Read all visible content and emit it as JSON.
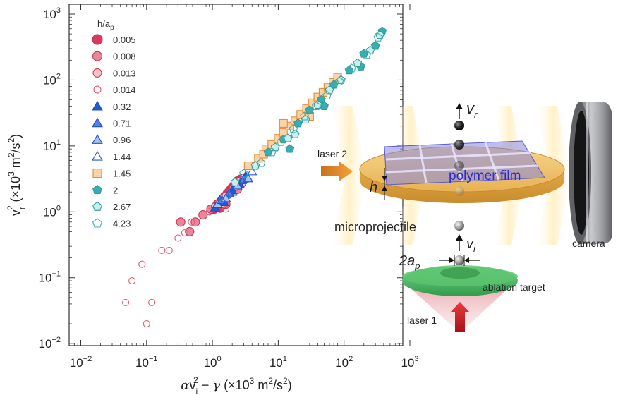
{
  "chart_data": {
    "type": "scatter",
    "scale": "log-log",
    "x_label": "αv_i^2 − γ (×10^3 m^2/s^2)",
    "y_label": "v_r^2 (×10^3 m^2/s^2)",
    "xlim": [
      0.01,
      1000
    ],
    "ylim": [
      0.01,
      1000
    ],
    "x_tick_labels": [
      "10^−2",
      "10^−1",
      "10^0",
      "10^1",
      "10^2",
      "10^3"
    ],
    "y_tick_labels": [
      "10^−2",
      "10^−1",
      "10^0",
      "10^1",
      "10^2",
      "10^3"
    ],
    "legend_title": "h/a_p",
    "legend_position": "top-left",
    "grid": false,
    "series": [
      {
        "name": "0.005",
        "marker": "circle-filled",
        "color": "#d9395f",
        "points": [
          [
            1.05,
            1.1
          ],
          [
            1.2,
            1.3
          ],
          [
            1.4,
            1.5
          ],
          [
            1.55,
            1.7
          ],
          [
            1.7,
            1.9
          ],
          [
            1.85,
            2.1
          ],
          [
            2.0,
            2.3
          ],
          [
            2.2,
            2.6
          ],
          [
            2.4,
            2.9
          ],
          [
            2.7,
            3.1
          ],
          [
            1.3,
            1.15
          ]
        ]
      },
      {
        "name": "0.008",
        "marker": "circle-filled",
        "color": "#e8879b",
        "points": [
          [
            0.33,
            0.7
          ],
          [
            0.45,
            0.5
          ],
          [
            0.55,
            0.7
          ],
          [
            0.72,
            0.9
          ],
          [
            0.95,
            1.1
          ],
          [
            1.25,
            1.35
          ],
          [
            1.45,
            1.6
          ],
          [
            1.75,
            1.85
          ],
          [
            2.1,
            2.3
          ],
          [
            2.4,
            2.2
          ],
          [
            1.6,
            1.3
          ]
        ]
      },
      {
        "name": "0.013",
        "marker": "circle-filled",
        "color": "#f6c3cc",
        "points": [
          [
            1.1,
            1.2
          ],
          [
            1.35,
            1.45
          ],
          [
            1.6,
            1.75
          ],
          [
            1.9,
            2.0
          ],
          [
            2.25,
            2.4
          ],
          [
            2.6,
            2.9
          ],
          [
            3.0,
            3.3
          ],
          [
            2.8,
            2.7
          ],
          [
            1.5,
            1.3
          ]
        ]
      },
      {
        "name": "0.014",
        "marker": "circle-open",
        "color": "#e35a6d",
        "points": [
          [
            0.048,
            0.042
          ],
          [
            0.06,
            0.09
          ],
          [
            0.085,
            0.16
          ],
          [
            0.1,
            0.02
          ],
          [
            0.12,
            0.042
          ],
          [
            0.17,
            0.26
          ],
          [
            0.22,
            0.26
          ],
          [
            0.3,
            0.4
          ],
          [
            0.38,
            0.48
          ],
          [
            0.48,
            0.7
          ],
          [
            0.9,
            1.0
          ],
          [
            1.6,
            1.1
          ]
        ]
      },
      {
        "name": "0.32",
        "marker": "triangle-filled",
        "color": "#1f5bd6",
        "points": [
          [
            1.1,
            1.15
          ],
          [
            1.5,
            1.4
          ],
          [
            2.0,
            2.1
          ],
          [
            2.6,
            2.6
          ],
          [
            3.2,
            3.5
          ]
        ]
      },
      {
        "name": "0.71",
        "marker": "triangle-filled",
        "color": "#4f84e0",
        "points": [
          [
            1.3,
            1.5
          ],
          [
            1.8,
            1.9
          ],
          [
            2.3,
            2.5
          ],
          [
            3.0,
            3.1
          ]
        ]
      },
      {
        "name": "0.96",
        "marker": "triangle-filled",
        "color": "#a8c3ef",
        "points": [
          [
            1.2,
            1.3
          ],
          [
            1.6,
            1.6
          ],
          [
            2.4,
            2.5
          ],
          [
            3.5,
            3.2
          ]
        ]
      },
      {
        "name": "1.44",
        "marker": "triangle-open",
        "color": "#1f5bd6",
        "points": [
          [
            1.4,
            1.5
          ],
          [
            2.0,
            2.0
          ],
          [
            2.8,
            3.0
          ],
          [
            4.0,
            4.1
          ]
        ]
      },
      {
        "name": "1.45",
        "marker": "square-filled",
        "color": "#fbd3a8",
        "points": [
          [
            3.5,
            5.0
          ],
          [
            5.0,
            6.5
          ],
          [
            6.5,
            9.0
          ],
          [
            8.0,
            10.5
          ],
          [
            10.0,
            13.0
          ],
          [
            12.0,
            16.0
          ],
          [
            15.0,
            20.0
          ],
          [
            18.0,
            24.0
          ],
          [
            22.0,
            30.0
          ],
          [
            27.0,
            37.0
          ],
          [
            33.0,
            45.0
          ],
          [
            40.0,
            55.0
          ],
          [
            48.0,
            65.0
          ],
          [
            57.0,
            78.0
          ],
          [
            68.0,
            92.0
          ],
          [
            80.0,
            110.0
          ],
          [
            12.0,
            22.0
          ],
          [
            6.0,
            7.5
          ],
          [
            30.0,
            28.0
          ]
        ]
      },
      {
        "name": "2",
        "marker": "pentagon-filled",
        "color": "#3aaeae",
        "points": [
          [
            7.0,
            8.0
          ],
          [
            12.0,
            12.5
          ],
          [
            20.0,
            22.0
          ],
          [
            30.0,
            35.0
          ],
          [
            45.0,
            50.0
          ],
          [
            70.0,
            85.0
          ],
          [
            120.0,
            140.0
          ],
          [
            200.0,
            250.0
          ],
          [
            300.0,
            330.0
          ],
          [
            180.0,
            160.0
          ],
          [
            50.0,
            40.0
          ],
          [
            380.0,
            550.0
          ],
          [
            15.0,
            9.0
          ]
        ]
      },
      {
        "name": "2.67",
        "marker": "pentagon-filled",
        "color": "#c9eeee",
        "points": [
          [
            2.2,
            2.8
          ],
          [
            4.5,
            5.0
          ],
          [
            9.0,
            9.5
          ],
          [
            14.0,
            13.0
          ],
          [
            26.0,
            25.0
          ],
          [
            40.0,
            42.0
          ],
          [
            60.0,
            70.0
          ],
          [
            90.0,
            100.0
          ],
          [
            160.0,
            180.0
          ],
          [
            250.0,
            280.0
          ],
          [
            350.0,
            480.0
          ],
          [
            18.0,
            15.0
          ]
        ]
      },
      {
        "name": "4.23",
        "marker": "pentagon-open",
        "color": "#3aaeae",
        "points": [
          [
            3.0,
            3.8
          ],
          [
            5.5,
            5.5
          ],
          [
            8.0,
            8.0
          ],
          [
            11.0,
            11.5
          ],
          [
            17.0,
            18.0
          ],
          [
            25.0,
            28.0
          ],
          [
            38.0,
            40.0
          ],
          [
            55.0,
            58.0
          ],
          [
            85.0,
            95.0
          ],
          [
            130.0,
            150.0
          ],
          [
            220.0,
            240.0
          ],
          [
            330.0,
            440.0
          ]
        ]
      }
    ]
  },
  "diagram": {
    "labels": {
      "vr": "v_r",
      "laser2": "laser 2",
      "polymer_film": "polymer film",
      "h": "h",
      "microprojectile": "microprojectile",
      "vi": "v_i",
      "two_ap": "2a_p",
      "ablation_target": "ablation target",
      "laser1": "laser 1",
      "camera": "camera"
    },
    "colors": {
      "film": "#7f7fdc",
      "film_text": "#2a2ad8",
      "substrate": "#eebf6a",
      "ablation": "#3fae58",
      "laser1": "#d8262e",
      "laser2": "#ee9830",
      "camera": "#8e9094"
    }
  }
}
